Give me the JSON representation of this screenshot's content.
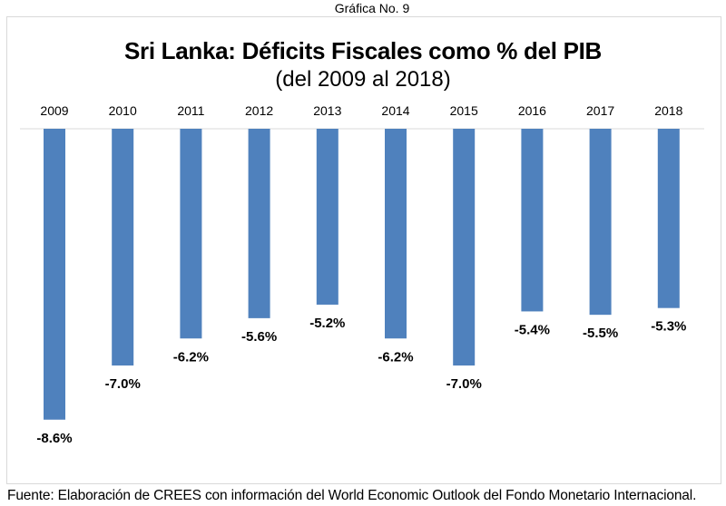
{
  "caption": "Gráfica No. 9",
  "source": "Fuente: Elaboración de CREES con información del World Economic Outlook del Fondo Monetario Internacional.",
  "chart_data": {
    "type": "bar",
    "title": "Sri Lanka: Déficits Fiscales como % del PIB",
    "subtitle": "(del 2009 al 2018)",
    "xlabel": "",
    "ylabel": "",
    "categories": [
      "2009",
      "2010",
      "2011",
      "2012",
      "2013",
      "2014",
      "2015",
      "2016",
      "2017",
      "2018"
    ],
    "values": [
      -8.6,
      -7.0,
      -6.2,
      -5.6,
      -5.2,
      -6.2,
      -7.0,
      -5.4,
      -5.5,
      -5.3
    ],
    "data_labels": [
      "-8.6%",
      "-7.0%",
      "-6.2%",
      "-5.6%",
      "-5.2%",
      "-6.2%",
      "-7.0%",
      "-5.4%",
      "-5.5%",
      "-5.3%"
    ],
    "ylim": [
      -10,
      0
    ],
    "x_axis_position": "top",
    "grid": false,
    "legend": "none",
    "bar_color": "#4f81bd",
    "axis_color": "#d9d9d9"
  }
}
